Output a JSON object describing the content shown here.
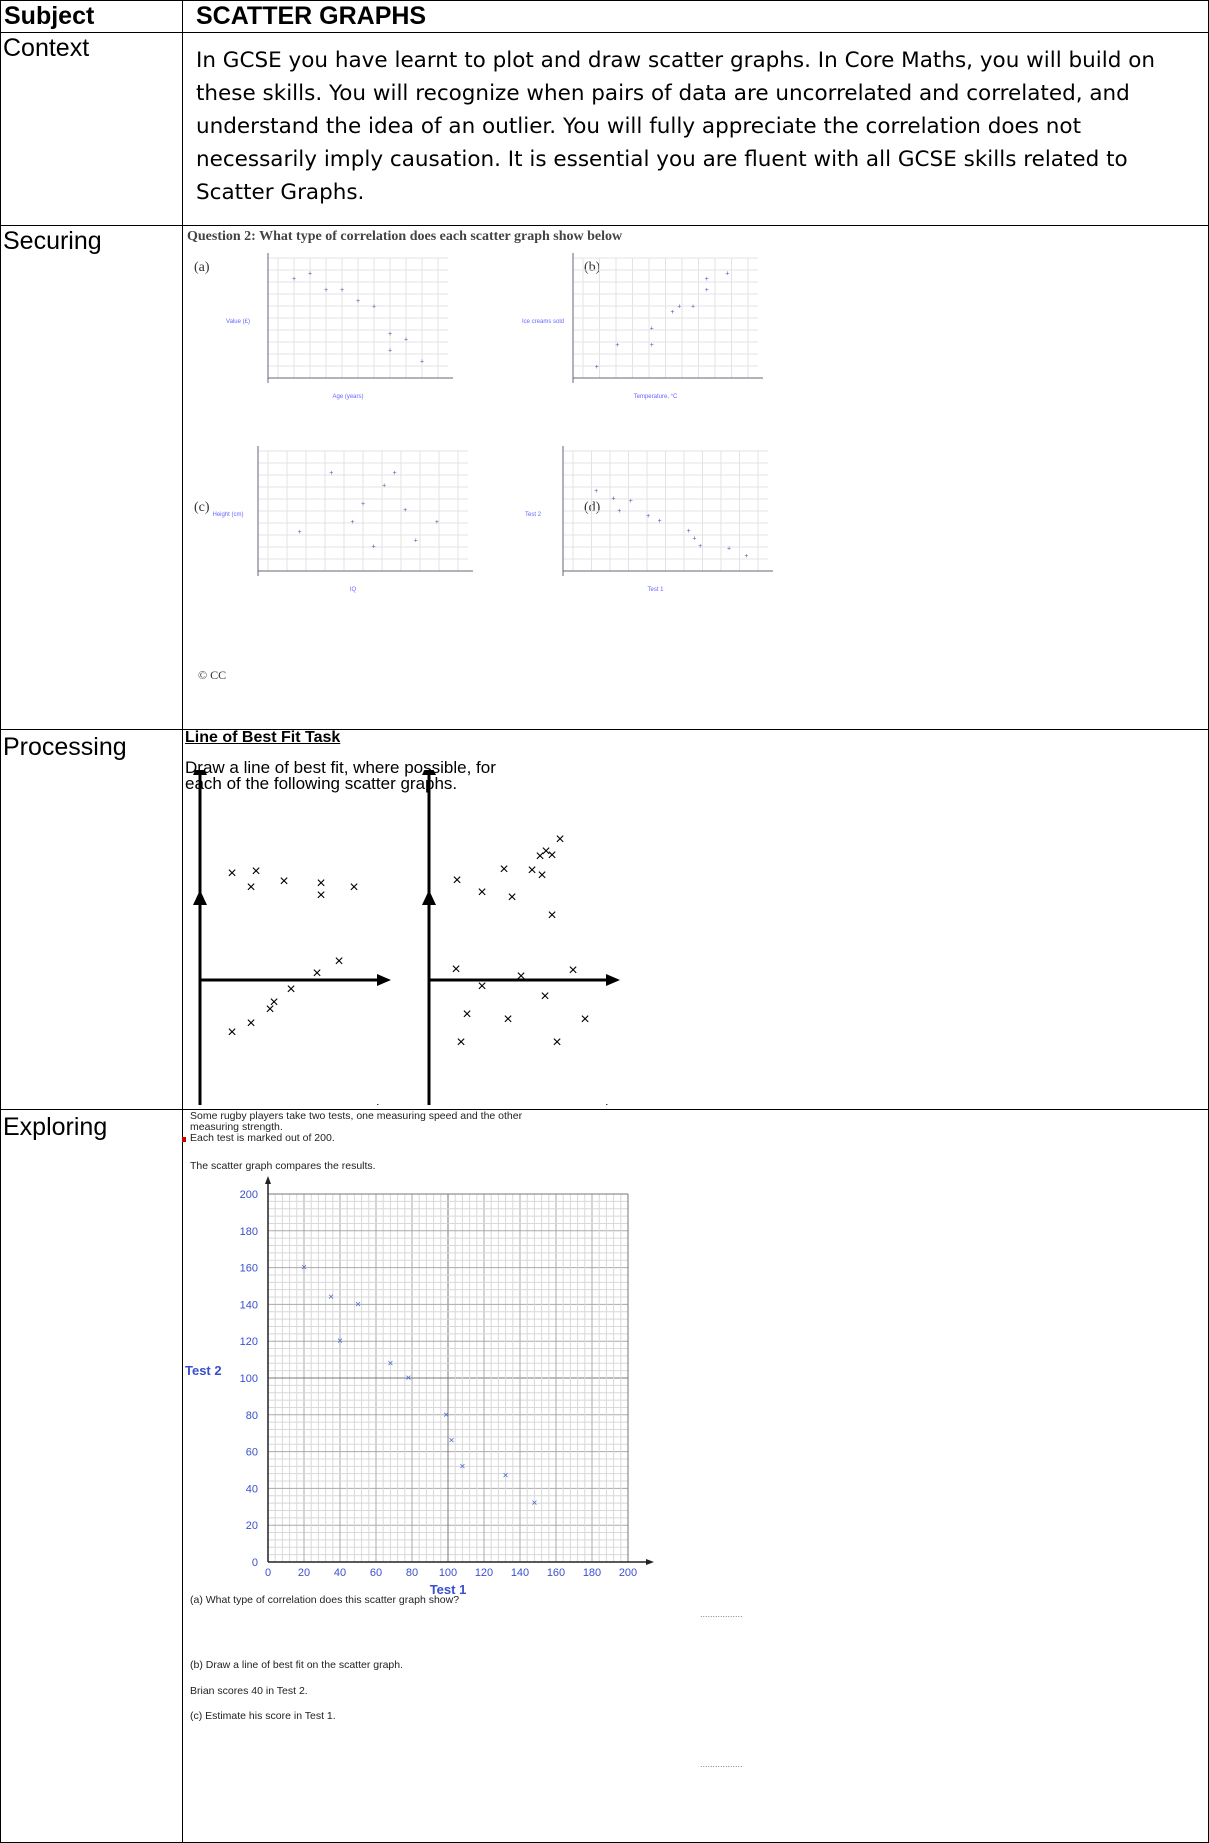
{
  "header": {
    "subject_label": "Subject",
    "title": "SCATTER GRAPHS"
  },
  "rows": {
    "context": {
      "label": "Context",
      "text": "In GCSE you have learnt to plot and draw scatter graphs. In Core Maths, you will build on these skills. You will recognize when pairs of data are uncorrelated and correlated, and understand the idea of an outlier. You will fully appreciate the correlation does not necessarily imply causation. It is essential you are fluent with all GCSE skills related to Scatter Graphs."
    },
    "securing": {
      "label": "Securing",
      "question": "Question 2:   What type of correlation does each scatter graph show below",
      "parts": [
        "(a)",
        "(b)",
        "(c)",
        "(d)"
      ],
      "copyright": "© CC"
    },
    "processing": {
      "label": "Processing",
      "task_title": "Line of Best Fit Task",
      "task_text_1": "Draw a line of best fit, where possible, for",
      "task_text_2": "each of the following scatter graphs."
    },
    "exploring": {
      "label": "Exploring",
      "intro_1": "Some rugby players take two tests, one measuring speed and the other",
      "intro_2": "measuring strength.",
      "intro_3": "Each test is marked out of 200.",
      "intro_4": "The scatter graph compares the results.",
      "q_a": "(a)  What type of correlation does this scatter graph show?",
      "q_b": "(b)  Draw a line of best fit on the scatter graph.",
      "brian": "Brian scores 40 in Test 2.",
      "q_c": "(c)  Estimate his score in Test 1.",
      "answer_line": "................."
    }
  },
  "chart_data": [
    {
      "type": "scatter",
      "title": "",
      "xlabel": "Age (years)",
      "ylabel": "Value (£)",
      "points": [
        [
          1,
          9000
        ],
        [
          2,
          9500
        ],
        [
          3,
          8000
        ],
        [
          4,
          8000
        ],
        [
          5,
          7000
        ],
        [
          6,
          6500
        ],
        [
          7,
          4000
        ],
        [
          7,
          2500
        ],
        [
          8,
          3500
        ],
        [
          9,
          1500
        ]
      ]
    },
    {
      "type": "scatter",
      "title": "",
      "xlabel": "Temperature, °C",
      "ylabel": "Ice creams sold",
      "points": [
        [
          2,
          10
        ],
        [
          5,
          30
        ],
        [
          10,
          30
        ],
        [
          10,
          45
        ],
        [
          13,
          60
        ],
        [
          14,
          65
        ],
        [
          16,
          65
        ],
        [
          18,
          80
        ],
        [
          18,
          90
        ],
        [
          21,
          95
        ]
      ]
    },
    {
      "type": "scatter",
      "title": "",
      "xlabel": "IQ",
      "ylabel": "Height (cm)",
      "points": [
        [
          85,
          122
        ],
        [
          100,
          170
        ],
        [
          110,
          130
        ],
        [
          115,
          145
        ],
        [
          120,
          110
        ],
        [
          125,
          160
        ],
        [
          130,
          170
        ],
        [
          135,
          140
        ],
        [
          140,
          115
        ],
        [
          150,
          130
        ]
      ]
    },
    {
      "type": "scatter",
      "title": "",
      "xlabel": "Test 1",
      "ylabel": "Test 2",
      "points": [
        [
          20,
          160
        ],
        [
          35,
          145
        ],
        [
          40,
          120
        ],
        [
          50,
          140
        ],
        [
          65,
          110
        ],
        [
          75,
          100
        ],
        [
          100,
          80
        ],
        [
          105,
          65
        ],
        [
          110,
          50
        ],
        [
          135,
          45
        ],
        [
          150,
          30
        ]
      ]
    },
    {
      "type": "scatter",
      "title": "",
      "xlabel": "Test 1",
      "ylabel": "Test 2",
      "xlim": [
        0,
        200
      ],
      "ylim": [
        0,
        200
      ],
      "xticks": [
        "0",
        "20",
        "40",
        "60",
        "80",
        "100",
        "120",
        "140",
        "160",
        "180",
        "200"
      ],
      "yticks": [
        "0",
        "20",
        "40",
        "60",
        "80",
        "100",
        "120",
        "140",
        "160",
        "180",
        "200"
      ],
      "points": [
        [
          20,
          160
        ],
        [
          35,
          144
        ],
        [
          40,
          120
        ],
        [
          50,
          140
        ],
        [
          68,
          108
        ],
        [
          78,
          100
        ],
        [
          99,
          80
        ],
        [
          102,
          66
        ],
        [
          108,
          52
        ],
        [
          132,
          47
        ],
        [
          148,
          32
        ]
      ]
    }
  ]
}
